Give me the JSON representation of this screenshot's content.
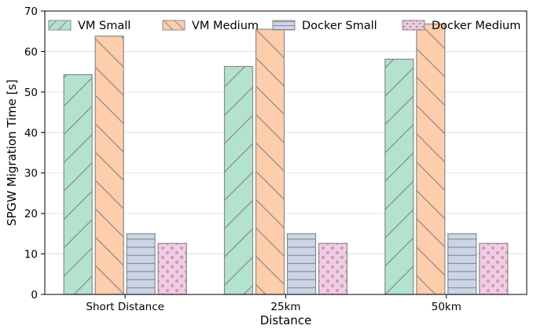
{
  "chart_data": {
    "type": "bar",
    "xlabel": "Distance",
    "ylabel": "SPGW Migration Time [s]",
    "categories": [
      "Short Distance",
      "25km",
      "50km"
    ],
    "ylim": [
      0,
      70
    ],
    "yticks": [
      0,
      10,
      20,
      30,
      40,
      50,
      60,
      70
    ],
    "grid": "horizontal",
    "legend": "top, single row",
    "series": [
      {
        "name": "VM Small",
        "values": [
          54.3,
          56.3,
          58.1
        ],
        "color": "#b3e2cd",
        "hatch": "forward-diagonal"
      },
      {
        "name": "VM Medium",
        "values": [
          63.8,
          65.5,
          66.8
        ],
        "color": "#fdcdac",
        "hatch": "back-diagonal"
      },
      {
        "name": "Docker Small",
        "values": [
          15.0,
          15.0,
          15.0
        ],
        "color": "#cbd5e8",
        "hatch": "horizontal"
      },
      {
        "name": "Docker Medium",
        "values": [
          12.6,
          12.6,
          12.6
        ],
        "color": "#f4cae4",
        "hatch": "dots"
      }
    ]
  }
}
